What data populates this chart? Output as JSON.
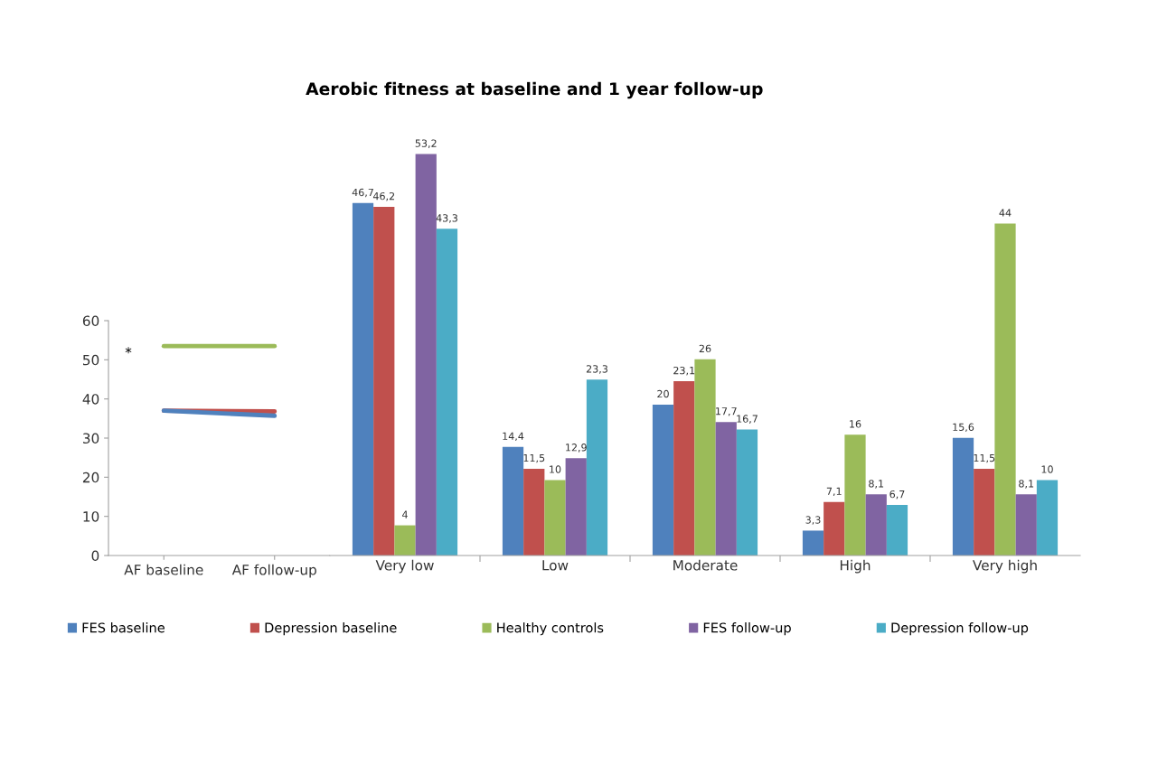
{
  "chart_data": [
    {
      "type": "line",
      "categories": [
        "AF baseline",
        "AF follow-up"
      ],
      "ylim": [
        0,
        60
      ],
      "yticks": [
        0,
        10,
        20,
        30,
        40,
        50,
        60
      ],
      "grid": false,
      "series": [
        {
          "color": "#9bbb59",
          "values": [
            53.5,
            53.5
          ]
        },
        {
          "color": "#c0504d",
          "values": [
            37,
            36.8
          ]
        },
        {
          "color": "#4f81bd",
          "values": [
            37,
            35.7
          ]
        }
      ],
      "annotations": [
        "*"
      ]
    },
    {
      "type": "bar",
      "title": "Aerobic fitness at baseline and 1 year follow-up",
      "categories": [
        "Very low",
        "Low",
        "Moderate",
        "High",
        "Very high"
      ],
      "grid": false,
      "legend": "bottom",
      "series": [
        {
          "name": "FES baseline",
          "color": "#4f81bd",
          "values": [
            46.7,
            14.4,
            20,
            3.3,
            15.6
          ],
          "value_labels": [
            "46,7",
            "14,4",
            "20",
            "3,3",
            "15,6"
          ]
        },
        {
          "name": "Depression baseline",
          "color": "#c0504d",
          "values": [
            46.2,
            11.5,
            23.1,
            7.1,
            11.5
          ],
          "value_labels": [
            "46,2",
            "11,5",
            "23,1",
            "7,1",
            "11,5"
          ]
        },
        {
          "name": "Healthy controls",
          "color": "#9bbb59",
          "values": [
            4,
            10,
            26,
            16,
            44
          ],
          "value_labels": [
            "4",
            "10",
            "26",
            "16",
            "44"
          ]
        },
        {
          "name": "FES follow-up",
          "color": "#8064a2",
          "values": [
            53.2,
            12.9,
            17.7,
            8.1,
            8.1
          ],
          "value_labels": [
            "53,2",
            "12,9",
            "17,7",
            "8,1",
            "8,1"
          ]
        },
        {
          "name": "Depression follow-up",
          "color": "#4bacc6",
          "values": [
            43.3,
            23.3,
            16.7,
            6.7,
            10
          ],
          "value_labels": [
            "43,3",
            "23,3",
            "16,7",
            "6,7",
            "10"
          ]
        }
      ]
    }
  ]
}
